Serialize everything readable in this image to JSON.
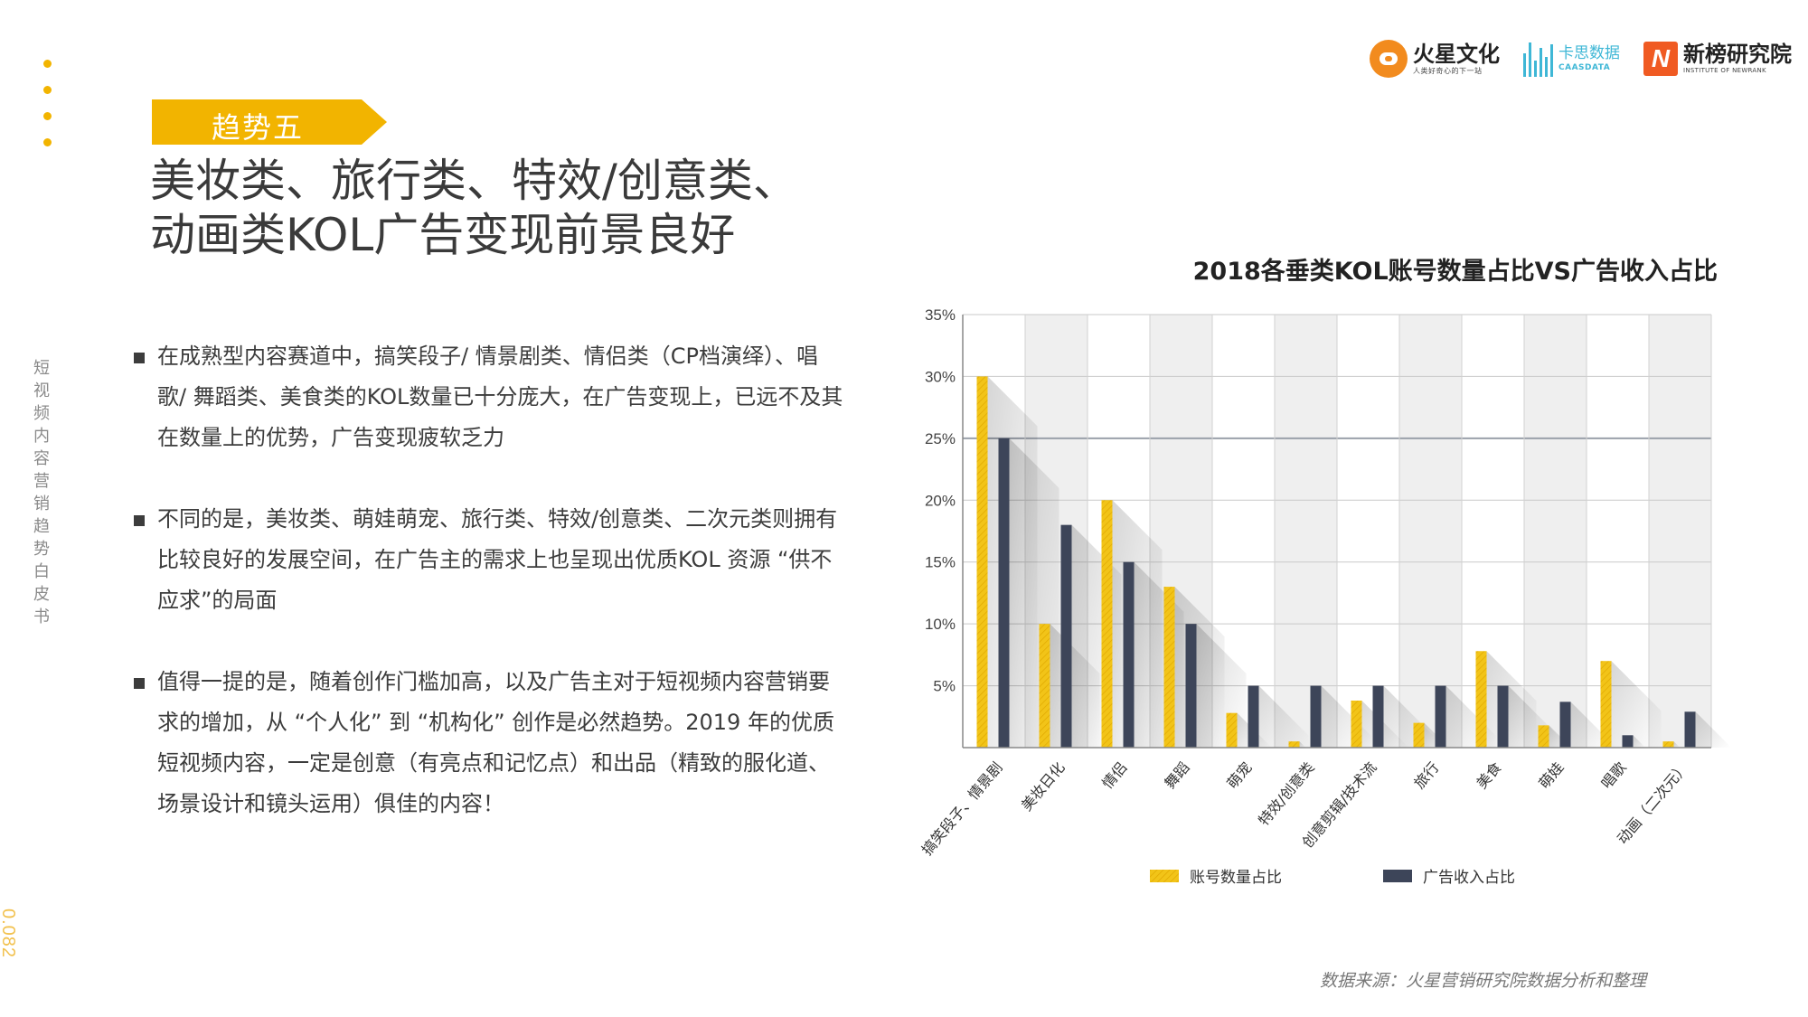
{
  "trend_tag": "趋势五",
  "headline": [
    "美妆类、旅行类、特效/创意类、",
    "动画类KOL广告变现前景良好"
  ],
  "side_title": "短视频内容营销趋势白皮书",
  "page_number": "0.082",
  "logos": {
    "huoxing": {
      "name": "火星文化",
      "slogan": "人类好奇心的下一站"
    },
    "kaiyuan": {
      "name": "卡思数据",
      "sub": "CAASDATA"
    },
    "xinbang": {
      "name": "新榜研究院",
      "sub": "INSTITUTE OF NEWRANK"
    }
  },
  "bullets": [
    "在成熟型内容赛道中，搞笑段子/ 情景剧类、情侣类（CP档演绎）、唱歌/ 舞蹈类、美食类的KOL数量已十分庞大，在广告变现上，已远不及其在数量上的优势，广告变现疲软乏力",
    "不同的是，美妆类、萌娃萌宠、旅行类、特效/创意类、二次元类则拥有比较良好的发展空间，在广告主的需求上也呈现出优质KOL 资源 “供不应求”的局面",
    "值得一提的是，随着创作门槛加高，以及广告主对于短视频内容营销要求的增加，从 “个人化” 到 “机构化”  创作是必然趋势。2019 年的优质短视频内容，一定是创意（有亮点和记忆点）和出品（精致的服化道、场景设计和镜头运用）俱佳的内容！"
  ],
  "chart_data": {
    "type": "bar",
    "title": "2018各垂类KOL账号数量占比VS广告收入占比",
    "categories": [
      "搞笑段子、情景剧",
      "美妆日化",
      "情侣",
      "舞蹈",
      "萌宠",
      "特效/创意类",
      "创意剪辑/技术流",
      "旅行",
      "美食",
      "萌娃",
      "唱歌",
      "动画（二次元）"
    ],
    "series": [
      {
        "name": "账号数量占比",
        "color": "#F2C418",
        "values": [
          30,
          10,
          20,
          13,
          2.8,
          0.5,
          3.8,
          2,
          7.8,
          1.8,
          7,
          0.5
        ]
      },
      {
        "name": "广告收入占比",
        "color": "#3D4559",
        "values": [
          25,
          18,
          15,
          10,
          5,
          5,
          5,
          5,
          5,
          3.7,
          1,
          2.9
        ]
      }
    ],
    "ylim": [
      0,
      35
    ],
    "yticks": [
      "35%",
      "30%",
      "25%",
      "20%",
      "15%",
      "10%",
      "5%"
    ],
    "legend_position": "bottom",
    "grid": true
  },
  "source": "数据来源：火星营销研究院数据分析和整理"
}
